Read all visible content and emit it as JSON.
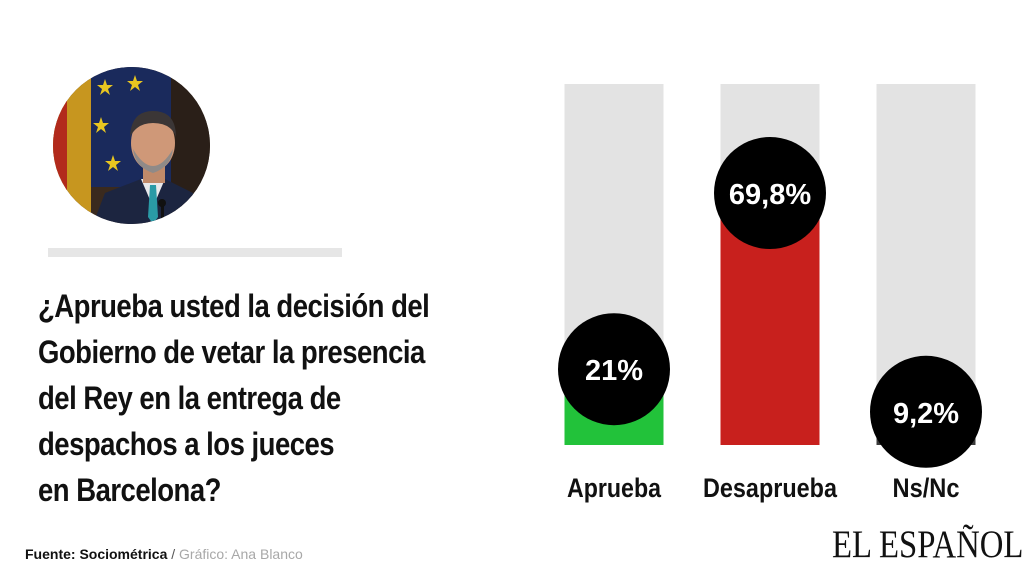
{
  "question": "¿Aprueba usted la decisión del\nGobierno de vetar  la presencia\ndel Rey en la entrega de\ndespachos a  los jueces\nen Barcelona?",
  "footer": {
    "source": "Fuente: Sociométrica",
    "separator": " / ",
    "credit": "Gráfico: Ana Blanco"
  },
  "logo": "EL ESPAÑOL",
  "colors": {
    "track": "#e3e3e3",
    "bubble": "#000000",
    "bubble_text": "#ffffff"
  },
  "chart_data": {
    "type": "bar",
    "categories": [
      "Aprueba",
      "Desaprueba",
      "Ns/Nc"
    ],
    "values": [
      21,
      69.8,
      9.2
    ],
    "labels": [
      "21%",
      "69,8%",
      "9,2%"
    ],
    "colors": [
      "#22c23a",
      "#c8201d",
      "#3a3a3a"
    ],
    "ylim": [
      0,
      100
    ],
    "title": "",
    "xlabel": "",
    "ylabel": ""
  }
}
